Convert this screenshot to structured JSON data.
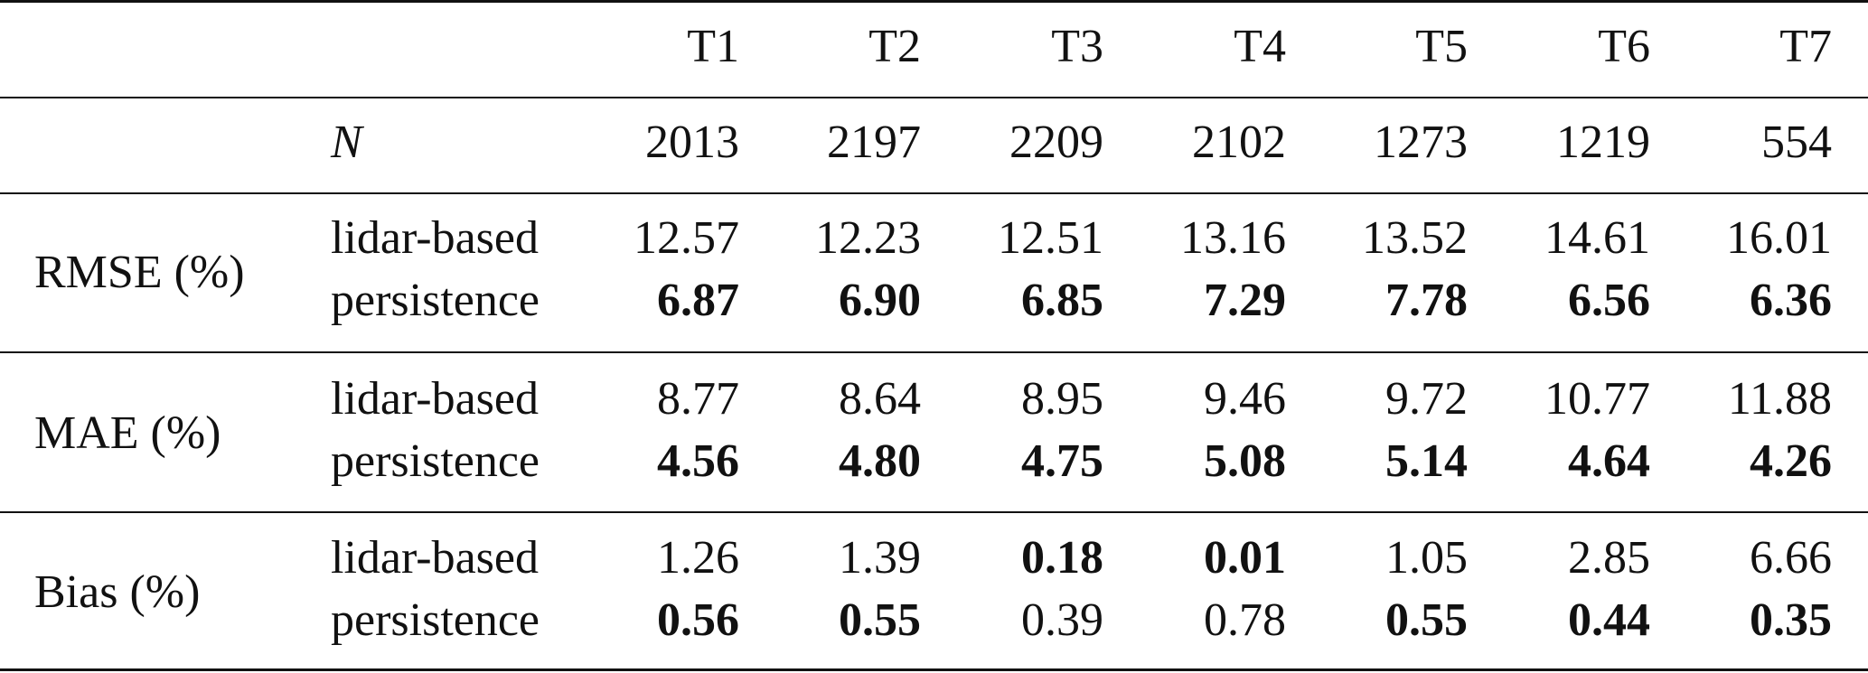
{
  "header": {
    "columns": [
      "T1",
      "T2",
      "T3",
      "T4",
      "T5",
      "T6",
      "T7"
    ]
  },
  "n_row": {
    "label": "N",
    "values": [
      "2013",
      "2197",
      "2209",
      "2102",
      "1273",
      "1219",
      "554"
    ]
  },
  "metrics": [
    {
      "label": "RMSE (%)",
      "rows": [
        {
          "method": "lidar-based",
          "values": [
            "12.57",
            "12.23",
            "12.51",
            "13.16",
            "13.52",
            "14.61",
            "16.01"
          ],
          "bold": [
            false,
            false,
            false,
            false,
            false,
            false,
            false
          ]
        },
        {
          "method": "persistence",
          "values": [
            "6.87",
            "6.90",
            "6.85",
            "7.29",
            "7.78",
            "6.56",
            "6.36"
          ],
          "bold": [
            true,
            true,
            true,
            true,
            true,
            true,
            true
          ]
        }
      ]
    },
    {
      "label": "MAE (%)",
      "rows": [
        {
          "method": "lidar-based",
          "values": [
            "8.77",
            "8.64",
            "8.95",
            "9.46",
            "9.72",
            "10.77",
            "11.88"
          ],
          "bold": [
            false,
            false,
            false,
            false,
            false,
            false,
            false
          ]
        },
        {
          "method": "persistence",
          "values": [
            "4.56",
            "4.80",
            "4.75",
            "5.08",
            "5.14",
            "4.64",
            "4.26"
          ],
          "bold": [
            true,
            true,
            true,
            true,
            true,
            true,
            true
          ]
        }
      ]
    },
    {
      "label": "Bias (%)",
      "rows": [
        {
          "method": "lidar-based",
          "values": [
            "1.26",
            "1.39",
            "0.18",
            "0.01",
            "1.05",
            "2.85",
            "6.66"
          ],
          "bold": [
            false,
            false,
            true,
            true,
            false,
            false,
            false
          ]
        },
        {
          "method": "persistence",
          "values": [
            "0.56",
            "0.55",
            "0.39",
            "0.78",
            "0.55",
            "0.44",
            "0.35"
          ],
          "bold": [
            true,
            true,
            false,
            false,
            true,
            true,
            true
          ]
        }
      ]
    }
  ]
}
